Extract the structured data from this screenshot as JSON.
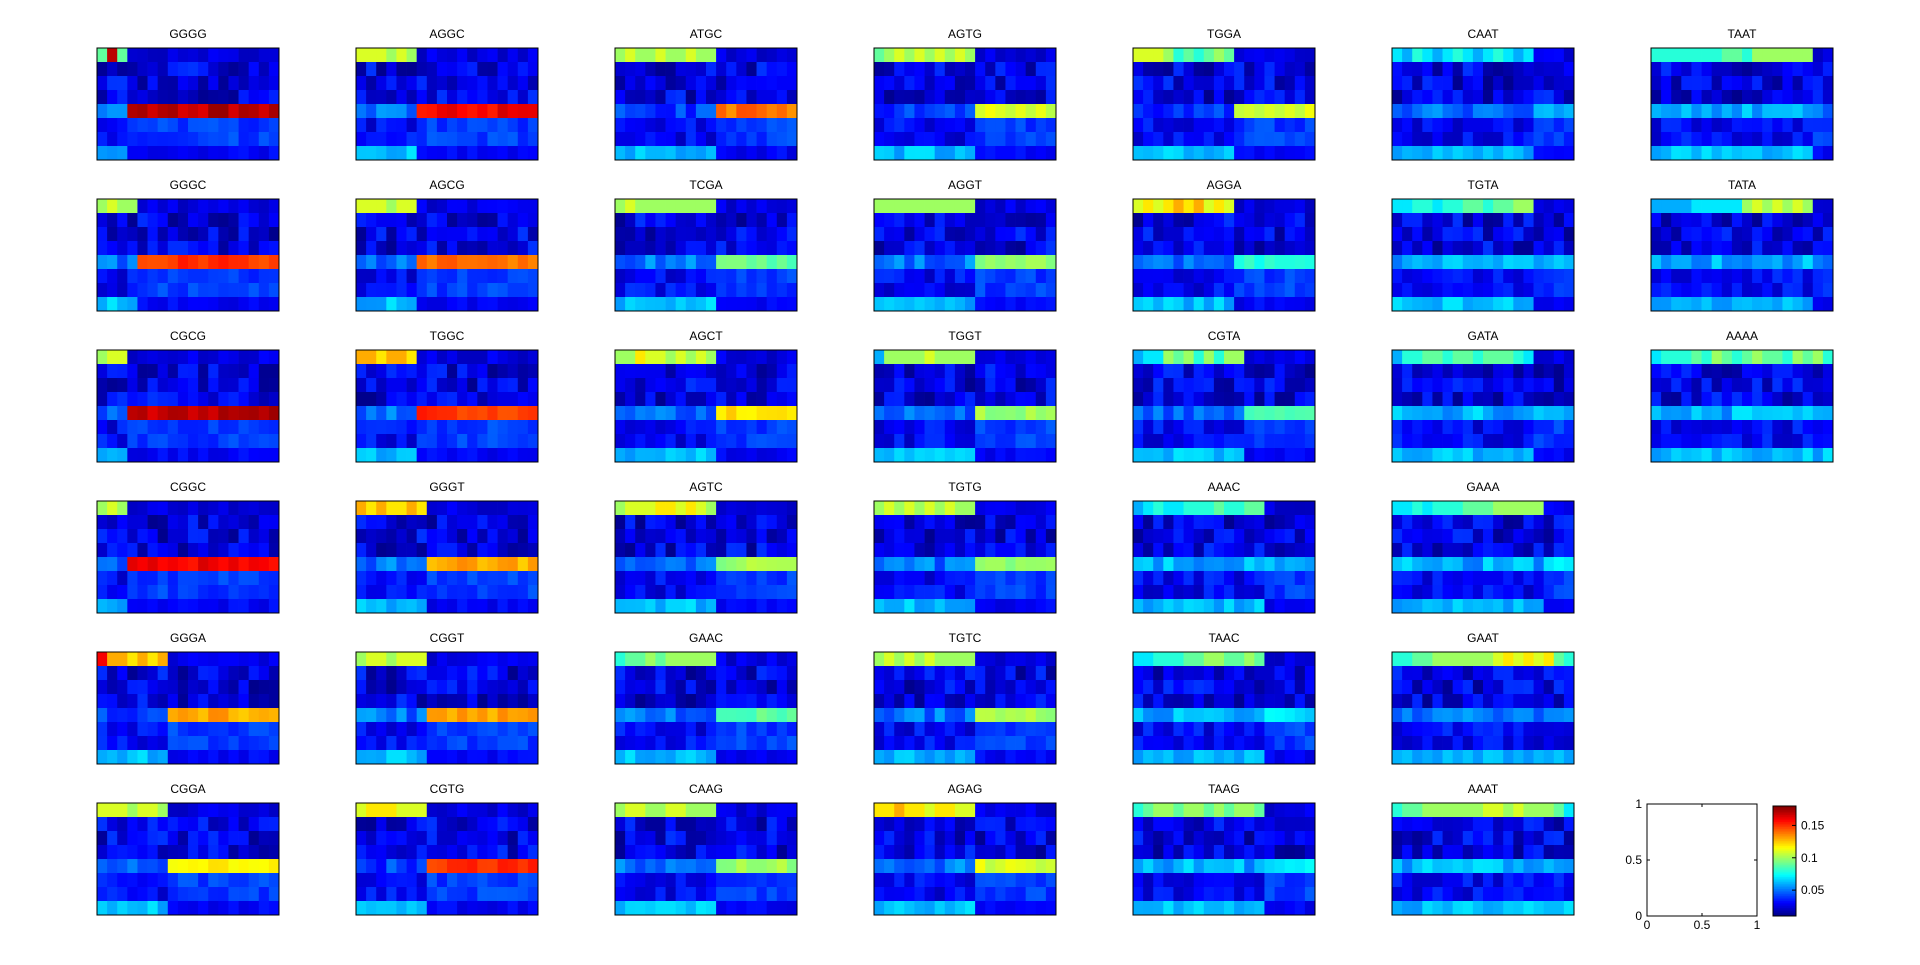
{
  "figure": {
    "background": "#ffffff",
    "colormap": "jet"
  },
  "chart_data": {
    "type": "heatmap",
    "panel_titles": [
      [
        "GGGG",
        "AGGC",
        "ATGC",
        "AGTG",
        "TGGA",
        "CAAT",
        "TAAT"
      ],
      [
        "GGGC",
        "AGCG",
        "TCGA",
        "AGGT",
        "AGGA",
        "TGTA",
        "TATA"
      ],
      [
        "CGCG",
        "TGGC",
        "AGCT",
        "TGGT",
        "CGTA",
        "GATA",
        "AAAA"
      ],
      [
        "CGGC",
        "GGGT",
        "AGTC",
        "TGTG",
        "AAAC",
        "GAAA",
        ""
      ],
      [
        "GGGA",
        "CGGT",
        "GAAC",
        "TGTC",
        "TAAC",
        "GAAT",
        ""
      ],
      [
        "CGGA",
        "CGTG",
        "CAAG",
        "AGAG",
        "TAAG",
        "AAAT",
        ""
      ]
    ],
    "matrix_shape": [
      8,
      18
    ],
    "color_range": [
      0.01,
      0.18
    ],
    "colorbar": {
      "ticks": [
        0.05,
        0.1,
        0.15
      ],
      "tick_labels": [
        "0.05",
        "0.1",
        "0.15"
      ]
    },
    "empty_axes": {
      "xlim": [
        0,
        1
      ],
      "ylim": [
        0,
        1
      ],
      "xticks": [
        0,
        0.5,
        1
      ],
      "yticks": [
        0,
        0.5,
        1
      ],
      "xtick_labels": [
        "0",
        "0.5",
        "1"
      ],
      "ytick_labels": [
        "0",
        "0.5",
        "1"
      ]
    },
    "patterns": {
      "GGGG": {
        "split": 3,
        "row0": [
          0.09,
          0.17,
          0.09
        ],
        "hot_row": 4,
        "hot_left": 0.05,
        "hot_right": 0.17
      },
      "AGGC": {
        "split": 6,
        "row0": [
          0.11,
          0.11,
          0.11,
          0.1,
          0.11,
          0.1
        ],
        "hot_row": 4,
        "hot_left": 0.05,
        "hot_right": 0.16
      },
      "ATGC": {
        "split": 10,
        "row0": [
          0.1,
          0.11,
          0.1,
          0.1,
          0.11,
          0.1,
          0.1,
          0.11,
          0.1,
          0.1
        ],
        "hot_row": 4,
        "hot_left": 0.04,
        "hot_right": 0.14
      },
      "AGTG": {
        "split": 10,
        "row0": [
          0.09,
          0.1,
          0.11,
          0.1,
          0.11,
          0.1,
          0.11,
          0.1,
          0.11,
          0.1
        ],
        "hot_row": 4,
        "hot_left": 0.04,
        "hot_right": 0.11
      },
      "TGGA": {
        "split": 10,
        "row0": [
          0.11,
          0.11,
          0.11,
          0.1,
          0.08,
          0.09,
          0.08,
          0.09,
          0.1,
          0.09
        ],
        "hot_row": 4,
        "hot_left": 0.04,
        "hot_right": 0.11
      },
      "CAAT": {
        "split": 14,
        "row0": [
          0.07,
          0.06,
          0.08,
          0.07,
          0.06,
          0.07,
          0.08,
          0.07,
          0.06,
          0.07,
          0.08,
          0.07,
          0.06,
          0.07
        ],
        "hot_row": 4,
        "hot_left": 0.05,
        "hot_right": 0.06
      },
      "TAAT": {
        "split": 16,
        "row0": [
          0.08,
          0.08,
          0.08,
          0.08,
          0.08,
          0.08,
          0.08,
          0.09,
          0.09,
          0.08,
          0.1,
          0.1,
          0.1,
          0.1,
          0.1,
          0.1
        ],
        "hot_row": 4,
        "hot_left": 0.06,
        "hot_right": 0.05
      },
      "GGGC": {
        "split": 4,
        "row0": [
          0.1,
          0.11,
          0.1,
          0.1
        ],
        "hot_row": 4,
        "hot_left": 0.05,
        "hot_right": 0.15
      },
      "AGCG": {
        "split": 6,
        "row0": [
          0.11,
          0.11,
          0.11,
          0.1,
          0.11,
          0.11
        ],
        "hot_row": 4,
        "hot_left": 0.05,
        "hot_right": 0.14
      },
      "TCGA": {
        "split": 10,
        "row0": [
          0.1,
          0.11,
          0.1,
          0.1,
          0.1,
          0.1,
          0.1,
          0.1,
          0.1,
          0.1
        ],
        "hot_row": 4,
        "hot_left": 0.05,
        "hot_right": 0.09
      },
      "AGGT": {
        "split": 10,
        "row0": [
          0.1,
          0.1,
          0.1,
          0.1,
          0.1,
          0.1,
          0.1,
          0.1,
          0.1,
          0.1
        ],
        "hot_row": 4,
        "hot_left": 0.05,
        "hot_right": 0.1
      },
      "AGGA": {
        "split": 10,
        "row0": [
          0.11,
          0.12,
          0.11,
          0.12,
          0.13,
          0.12,
          0.13,
          0.11,
          0.12,
          0.11
        ],
        "hot_row": 4,
        "hot_left": 0.05,
        "hot_right": 0.08
      },
      "TGTA": {
        "split": 14,
        "row0": [
          0.07,
          0.07,
          0.08,
          0.08,
          0.07,
          0.08,
          0.08,
          0.09,
          0.09,
          0.08,
          0.09,
          0.09,
          0.1,
          0.1
        ],
        "hot_row": 4,
        "hot_left": 0.06,
        "hot_right": 0.06
      },
      "TATA": {
        "split": 16,
        "row0": [
          0.06,
          0.06,
          0.06,
          0.06,
          0.07,
          0.07,
          0.07,
          0.07,
          0.07,
          0.1,
          0.11,
          0.1,
          0.11,
          0.1,
          0.11,
          0.1
        ],
        "hot_row": 4,
        "hot_left": 0.06,
        "hot_right": 0.05
      },
      "CGCG": {
        "split": 3,
        "row0": [
          0.1,
          0.11,
          0.11
        ],
        "hot_row": 4,
        "hot_left": 0.05,
        "hot_right": 0.17
      },
      "TGGC": {
        "split": 6,
        "row0": [
          0.13,
          0.13,
          0.12,
          0.13,
          0.13,
          0.12
        ],
        "hot_row": 4,
        "hot_left": 0.05,
        "hot_right": 0.15
      },
      "AGCT": {
        "split": 10,
        "row0": [
          0.1,
          0.1,
          0.12,
          0.11,
          0.11,
          0.1,
          0.11,
          0.1,
          0.11,
          0.1
        ],
        "hot_row": 4,
        "hot_left": 0.05,
        "hot_right": 0.12
      },
      "TGGT": {
        "split": 10,
        "row0": [
          0.06,
          0.1,
          0.1,
          0.1,
          0.1,
          0.11,
          0.1,
          0.1,
          0.1,
          0.1
        ],
        "hot_row": 4,
        "hot_left": 0.05,
        "hot_right": 0.1
      },
      "CGTA": {
        "split": 11,
        "row0": [
          0.06,
          0.07,
          0.07,
          0.1,
          0.09,
          0.1,
          0.08,
          0.1,
          0.08,
          0.1,
          0.1
        ],
        "hot_row": 4,
        "hot_left": 0.05,
        "hot_right": 0.09
      },
      "GATA": {
        "split": 14,
        "row0": [
          0.06,
          0.08,
          0.08,
          0.09,
          0.09,
          0.08,
          0.09,
          0.09,
          0.08,
          0.09,
          0.09,
          0.09,
          0.08,
          0.07
        ],
        "hot_row": 4,
        "hot_left": 0.06,
        "hot_right": 0.06
      },
      "AAAA": {
        "split": 18,
        "row0": [
          0.07,
          0.08,
          0.08,
          0.08,
          0.09,
          0.08,
          0.1,
          0.09,
          0.08,
          0.09,
          0.1,
          0.09,
          0.09,
          0.08,
          0.1,
          0.09,
          0.1,
          0.08
        ],
        "hot_row": 4,
        "hot_left": 0.06,
        "hot_right": 0.06
      },
      "CGGC": {
        "split": 3,
        "row0": [
          0.1,
          0.11,
          0.1
        ],
        "hot_row": 4,
        "hot_left": 0.05,
        "hot_right": 0.16
      },
      "GGGT": {
        "split": 7,
        "row0": [
          0.13,
          0.12,
          0.13,
          0.12,
          0.12,
          0.13,
          0.12
        ],
        "hot_row": 4,
        "hot_left": 0.05,
        "hot_right": 0.13
      },
      "AGTC": {
        "split": 10,
        "row0": [
          0.1,
          0.11,
          0.11,
          0.11,
          0.12,
          0.12,
          0.11,
          0.12,
          0.11,
          0.1
        ],
        "hot_row": 4,
        "hot_left": 0.05,
        "hot_right": 0.1
      },
      "TGTG": {
        "split": 10,
        "row0": [
          0.1,
          0.11,
          0.1,
          0.11,
          0.1,
          0.11,
          0.1,
          0.11,
          0.1,
          0.1
        ],
        "hot_row": 4,
        "hot_left": 0.05,
        "hot_right": 0.1
      },
      "AAAC": {
        "split": 13,
        "row0": [
          0.06,
          0.07,
          0.08,
          0.07,
          0.07,
          0.08,
          0.08,
          0.08,
          0.09,
          0.08,
          0.08,
          0.09,
          0.09
        ],
        "hot_row": 4,
        "hot_left": 0.06,
        "hot_right": 0.06
      },
      "GAAA": {
        "split": 15,
        "row0": [
          0.07,
          0.07,
          0.08,
          0.07,
          0.08,
          0.08,
          0.08,
          0.09,
          0.09,
          0.09,
          0.1,
          0.1,
          0.1,
          0.1,
          0.1
        ],
        "hot_row": 4,
        "hot_left": 0.06,
        "hot_right": 0.07
      },
      "GGGA": {
        "split": 7,
        "row0": [
          0.16,
          0.13,
          0.13,
          0.12,
          0.13,
          0.12,
          0.13
        ],
        "hot_row": 4,
        "hot_left": 0.04,
        "hot_right": 0.13
      },
      "CGGT": {
        "split": 7,
        "row0": [
          0.1,
          0.11,
          0.11,
          0.1,
          0.11,
          0.11,
          0.11
        ],
        "hot_row": 4,
        "hot_left": 0.05,
        "hot_right": 0.13
      },
      "GAAC": {
        "split": 10,
        "row0": [
          0.08,
          0.09,
          0.09,
          0.1,
          0.09,
          0.1,
          0.1,
          0.1,
          0.1,
          0.1
        ],
        "hot_row": 4,
        "hot_left": 0.05,
        "hot_right": 0.09
      },
      "TGTC": {
        "split": 10,
        "row0": [
          0.1,
          0.11,
          0.1,
          0.11,
          0.1,
          0.11,
          0.1,
          0.1,
          0.1,
          0.1
        ],
        "hot_row": 4,
        "hot_left": 0.05,
        "hot_right": 0.1
      },
      "TAAC": {
        "split": 13,
        "row0": [
          0.07,
          0.07,
          0.08,
          0.08,
          0.08,
          0.09,
          0.09,
          0.1,
          0.1,
          0.09,
          0.09,
          0.1,
          0.09
        ],
        "hot_row": 4,
        "hot_left": 0.06,
        "hot_right": 0.07
      },
      "GAAT": {
        "split": 18,
        "row0": [
          0.08,
          0.08,
          0.09,
          0.09,
          0.1,
          0.1,
          0.1,
          0.1,
          0.1,
          0.1,
          0.11,
          0.12,
          0.11,
          0.12,
          0.11,
          0.12,
          0.09,
          0.08
        ],
        "hot_row": 4,
        "hot_left": 0.05,
        "hot_right": 0.05
      },
      "CGGA": {
        "split": 7,
        "row0": [
          0.11,
          0.11,
          0.11,
          0.1,
          0.11,
          0.11,
          0.1
        ],
        "hot_row": 4,
        "hot_left": 0.05,
        "hot_right": 0.12
      },
      "CGTG": {
        "split": 7,
        "row0": [
          0.11,
          0.12,
          0.12,
          0.12,
          0.11,
          0.11,
          0.11
        ],
        "hot_row": 4,
        "hot_left": 0.04,
        "hot_right": 0.15
      },
      "CAAG": {
        "split": 10,
        "row0": [
          0.1,
          0.11,
          0.11,
          0.1,
          0.1,
          0.11,
          0.11,
          0.1,
          0.1,
          0.1
        ],
        "hot_row": 4,
        "hot_left": 0.05,
        "hot_right": 0.1
      },
      "AGAG": {
        "split": 10,
        "row0": [
          0.12,
          0.12,
          0.13,
          0.12,
          0.12,
          0.11,
          0.12,
          0.12,
          0.11,
          0.11
        ],
        "hot_row": 4,
        "hot_left": 0.05,
        "hot_right": 0.11
      },
      "TAAG": {
        "split": 13,
        "row0": [
          0.08,
          0.09,
          0.1,
          0.1,
          0.09,
          0.1,
          0.1,
          0.09,
          0.1,
          0.09,
          0.1,
          0.1,
          0.09
        ],
        "hot_row": 4,
        "hot_left": 0.06,
        "hot_right": 0.07
      },
      "AAAT": {
        "split": 18,
        "row0": [
          0.08,
          0.09,
          0.09,
          0.1,
          0.1,
          0.1,
          0.1,
          0.1,
          0.1,
          0.11,
          0.11,
          0.1,
          0.11,
          0.1,
          0.1,
          0.1,
          0.09,
          0.07
        ],
        "hot_row": 4,
        "hot_left": 0.06,
        "hot_right": 0.06
      }
    }
  }
}
